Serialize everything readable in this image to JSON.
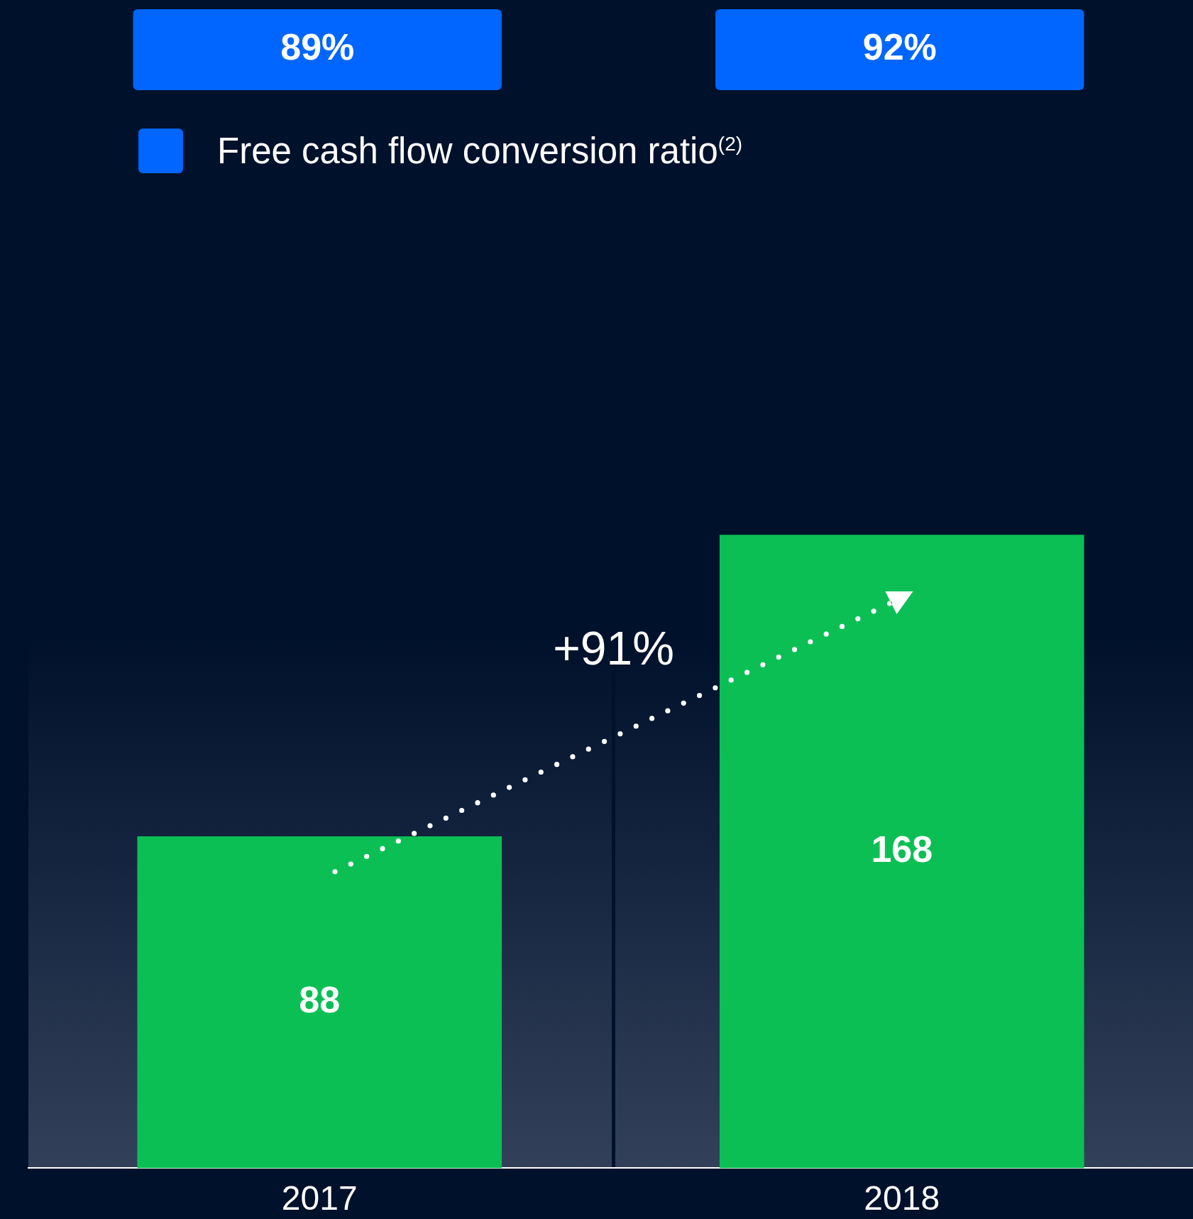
{
  "chart_data": [
    {
      "type": "other",
      "series": [
        {
          "name": "Free cash flow conversion ratio$^{(2)}$",
          "color": "#0066ff",
          "values": [
            89,
            92
          ],
          "value_labels": [
            "89%",
            "92%"
          ]
        }
      ],
      "legend": "bottom left"
    },
    {
      "type": "bar",
      "categories": [
        "2017",
        "2018"
      ],
      "values": [
        88,
        168
      ],
      "color": "#0bbf55",
      "data_labels": true,
      "annotations": [
        "+91%"
      ]
    }
  ]
}
